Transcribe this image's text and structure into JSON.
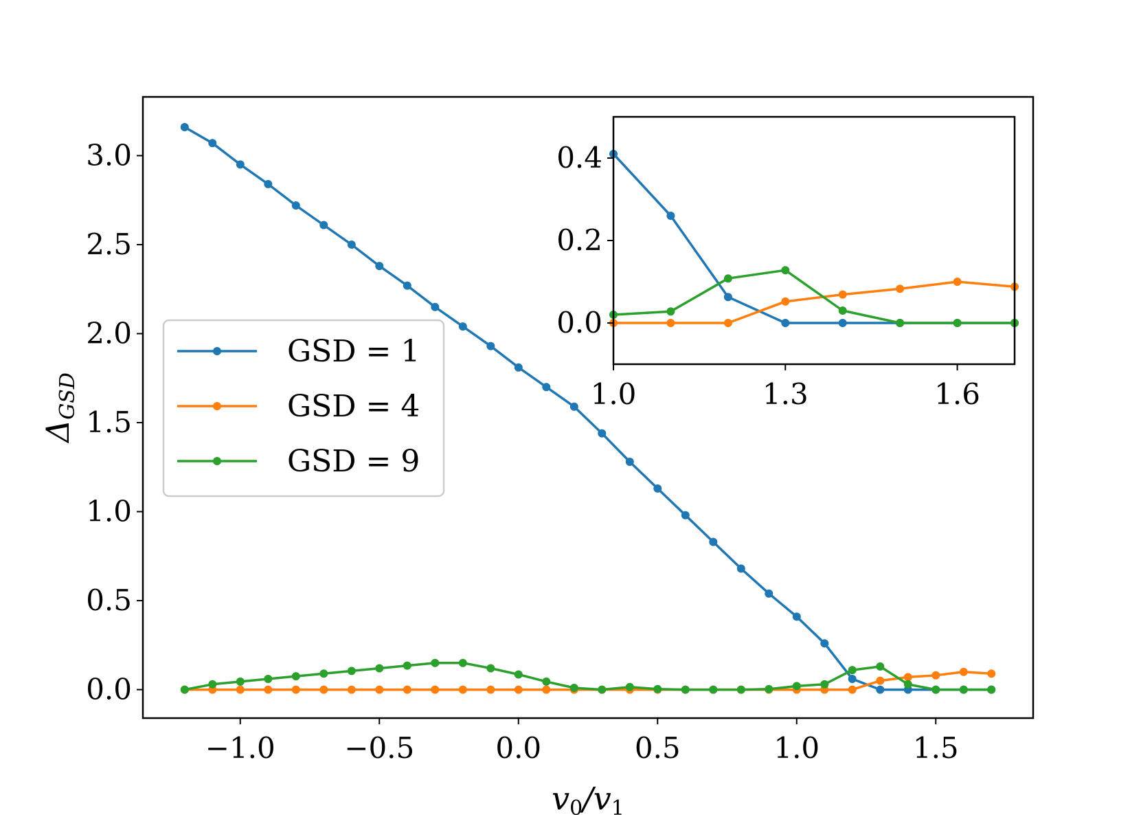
{
  "chart_data": [
    {
      "id": "main",
      "type": "line",
      "xlabel": "v0/v1",
      "xlabel_main": "v",
      "xlabel_sub0": "0",
      "xlabel_slash": "/v",
      "xlabel_sub1": "1",
      "ylabel": "ΔGSD",
      "ylabel_symbol": "Δ",
      "ylabel_sub": "GSD",
      "xlim": [
        -1.35,
        1.85
      ],
      "ylim": [
        -0.16,
        3.33
      ],
      "xticks": [
        -1.0,
        -0.5,
        0.0,
        0.5,
        1.0,
        1.5
      ],
      "xtick_labels": [
        "−1.0",
        "−0.5",
        "0.0",
        "0.5",
        "1.0",
        "1.5"
      ],
      "yticks": [
        0.0,
        0.5,
        1.0,
        1.5,
        2.0,
        2.5,
        3.0
      ],
      "ytick_labels": [
        "0.0",
        "0.5",
        "1.0",
        "1.5",
        "2.0",
        "2.5",
        "3.0"
      ],
      "legend_position": "center-left",
      "x": [
        -1.2,
        -1.1,
        -1.0,
        -0.9,
        -0.8,
        -0.7,
        -0.6,
        -0.5,
        -0.4,
        -0.3,
        -0.2,
        -0.1,
        0.0,
        0.1,
        0.2,
        0.3,
        0.4,
        0.5,
        0.6,
        0.7,
        0.8,
        0.9,
        1.0,
        1.1,
        1.2,
        1.3,
        1.4,
        1.5,
        1.6,
        1.7
      ],
      "series": [
        {
          "name": "GSD = 1",
          "color": "#1f77b4",
          "values": [
            3.16,
            3.07,
            2.95,
            2.84,
            2.72,
            2.61,
            2.5,
            2.38,
            2.27,
            2.15,
            2.04,
            1.93,
            1.81,
            1.7,
            1.59,
            1.44,
            1.28,
            1.13,
            0.98,
            0.83,
            0.68,
            0.54,
            0.41,
            0.26,
            0.06,
            0.0,
            0.0,
            0.0,
            0.0,
            0.0
          ]
        },
        {
          "name": "GSD = 4",
          "color": "#ff7f0e",
          "values": [
            0.0,
            0.0,
            0.0,
            0.0,
            0.0,
            0.0,
            0.0,
            0.0,
            0.0,
            0.0,
            0.0,
            0.0,
            0.0,
            0.0,
            0.0,
            0.0,
            0.0,
            0.0,
            0.0,
            0.0,
            0.0,
            0.0,
            0.0,
            0.0,
            0.0,
            0.05,
            0.07,
            0.08,
            0.1,
            0.09
          ]
        },
        {
          "name": "GSD = 9",
          "color": "#2ca02c",
          "values": [
            0.0,
            0.03,
            0.045,
            0.06,
            0.075,
            0.09,
            0.105,
            0.12,
            0.135,
            0.15,
            0.15,
            0.12,
            0.085,
            0.045,
            0.01,
            0.0,
            0.015,
            0.003,
            0.0,
            0.0,
            0.0,
            0.003,
            0.02,
            0.03,
            0.11,
            0.13,
            0.03,
            0.0,
            0.0,
            0.0
          ]
        }
      ]
    },
    {
      "id": "inset",
      "type": "line",
      "xlim": [
        1.0,
        1.7
      ],
      "ylim": [
        -0.1,
        0.5
      ],
      "xticks": [
        1.0,
        1.3,
        1.6
      ],
      "xtick_labels": [
        "1.0",
        "1.3",
        "1.6"
      ],
      "yticks": [
        0.0,
        0.2,
        0.4
      ],
      "ytick_labels": [
        "0.0",
        "0.2",
        "0.4"
      ],
      "x": [
        1.0,
        1.1,
        1.2,
        1.3,
        1.4,
        1.5,
        1.6,
        1.7
      ],
      "series": [
        {
          "name": "GSD = 1",
          "color": "#1f77b4",
          "values": [
            0.41,
            0.26,
            0.063,
            0.0,
            0.0,
            0.0,
            0.0,
            0.0
          ]
        },
        {
          "name": "GSD = 4",
          "color": "#ff7f0e",
          "values": [
            0.0,
            0.0,
            0.0,
            0.052,
            0.069,
            0.083,
            0.1,
            0.088
          ]
        },
        {
          "name": "GSD = 9",
          "color": "#2ca02c",
          "values": [
            0.02,
            0.028,
            0.108,
            0.128,
            0.03,
            0.0,
            0.0,
            0.0
          ]
        }
      ]
    }
  ]
}
